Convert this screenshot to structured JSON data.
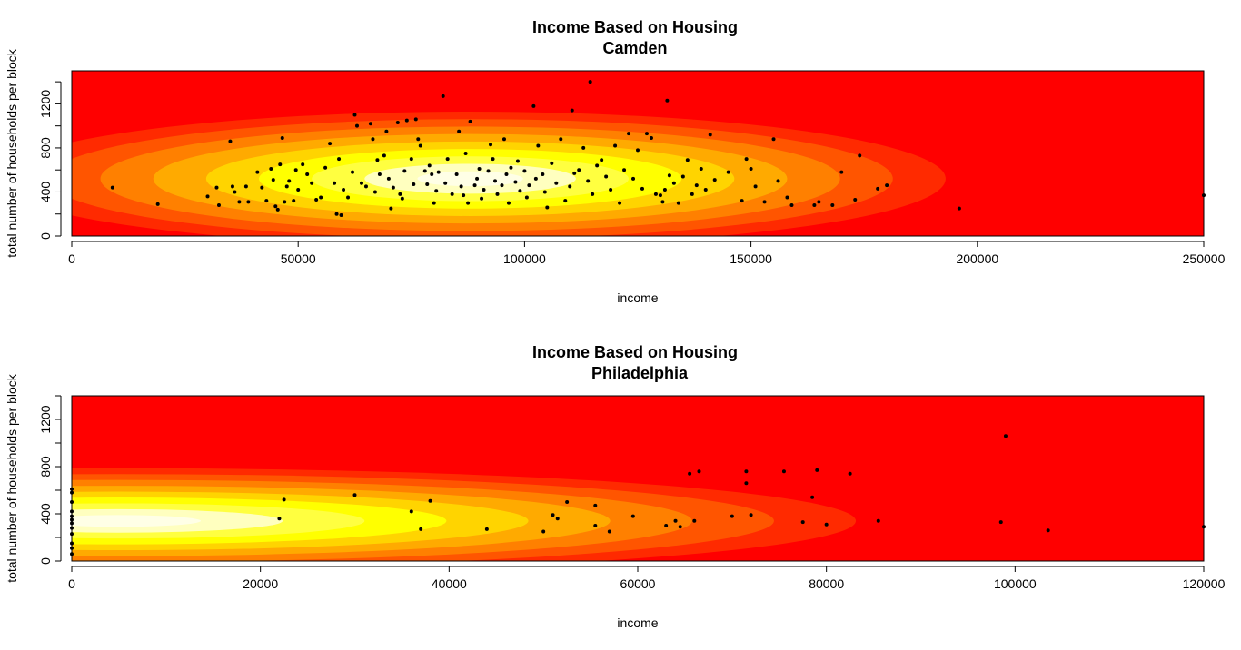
{
  "colors": {
    "background": "#ffffff",
    "palette_heat_low_to_high": [
      "#ff0000",
      "#ff2a00",
      "#ff5500",
      "#ff8000",
      "#ffaa00",
      "#ffd400",
      "#ffff00",
      "#ffff40",
      "#ffffbf",
      "#ffffe6"
    ]
  },
  "chart_data": [
    {
      "type": "scatter",
      "background": "filled density contour (heat colors)",
      "title": "Income Based on Housing",
      "subtitle": "Camden",
      "xlabel": "income",
      "ylabel": "total number of households per block",
      "xlim": [
        0,
        250000
      ],
      "ylim": [
        0,
        1500
      ],
      "xticks": [
        "0",
        "50000",
        "100000",
        "150000",
        "200000",
        "250000"
      ],
      "yticks": [
        "0",
        "400",
        "800",
        "1200"
      ],
      "grid": false,
      "density_center": [
        88000,
        520
      ],
      "points": [
        [
          9000,
          440
        ],
        [
          19000,
          290
        ],
        [
          30000,
          360
        ],
        [
          32000,
          440
        ],
        [
          32500,
          280
        ],
        [
          35000,
          860
        ],
        [
          35500,
          450
        ],
        [
          36000,
          400
        ],
        [
          37000,
          310
        ],
        [
          38500,
          450
        ],
        [
          39000,
          310
        ],
        [
          41000,
          580
        ],
        [
          42000,
          440
        ],
        [
          43000,
          320
        ],
        [
          44000,
          610
        ],
        [
          44500,
          510
        ],
        [
          45000,
          270
        ],
        [
          45500,
          240
        ],
        [
          46000,
          650
        ],
        [
          46500,
          890
        ],
        [
          47000,
          310
        ],
        [
          47500,
          450
        ],
        [
          48000,
          500
        ],
        [
          49000,
          320
        ],
        [
          49500,
          600
        ],
        [
          50000,
          420
        ],
        [
          51000,
          650
        ],
        [
          52000,
          560
        ],
        [
          53000,
          480
        ],
        [
          54000,
          330
        ],
        [
          55000,
          350
        ],
        [
          56000,
          620
        ],
        [
          57000,
          840
        ],
        [
          58000,
          480
        ],
        [
          58500,
          200
        ],
        [
          59000,
          700
        ],
        [
          59500,
          190
        ],
        [
          60000,
          420
        ],
        [
          61000,
          350
        ],
        [
          62000,
          580
        ],
        [
          62500,
          1100
        ],
        [
          63000,
          1000
        ],
        [
          64000,
          480
        ],
        [
          65000,
          450
        ],
        [
          66000,
          1020
        ],
        [
          66500,
          880
        ],
        [
          67000,
          400
        ],
        [
          67500,
          690
        ],
        [
          68000,
          560
        ],
        [
          69000,
          730
        ],
        [
          69500,
          950
        ],
        [
          70000,
          520
        ],
        [
          70500,
          250
        ],
        [
          71000,
          440
        ],
        [
          72000,
          1030
        ],
        [
          72500,
          380
        ],
        [
          73000,
          340
        ],
        [
          73500,
          590
        ],
        [
          74000,
          1050
        ],
        [
          75000,
          700
        ],
        [
          75500,
          470
        ],
        [
          76000,
          1060
        ],
        [
          76500,
          880
        ],
        [
          77000,
          820
        ],
        [
          78000,
          590
        ],
        [
          78500,
          470
        ],
        [
          79000,
          640
        ],
        [
          79500,
          560
        ],
        [
          80000,
          300
        ],
        [
          80500,
          410
        ],
        [
          81000,
          580
        ],
        [
          82000,
          1270
        ],
        [
          82500,
          480
        ],
        [
          83000,
          700
        ],
        [
          84000,
          380
        ],
        [
          85000,
          560
        ],
        [
          85500,
          950
        ],
        [
          86000,
          450
        ],
        [
          86500,
          370
        ],
        [
          87000,
          750
        ],
        [
          87500,
          300
        ],
        [
          88000,
          1040
        ],
        [
          89000,
          460
        ],
        [
          89500,
          520
        ],
        [
          90000,
          610
        ],
        [
          90500,
          340
        ],
        [
          91000,
          420
        ],
        [
          92000,
          590
        ],
        [
          92500,
          830
        ],
        [
          93000,
          700
        ],
        [
          93500,
          500
        ],
        [
          94000,
          380
        ],
        [
          95000,
          460
        ],
        [
          95500,
          880
        ],
        [
          96000,
          560
        ],
        [
          96500,
          300
        ],
        [
          97000,
          620
        ],
        [
          98000,
          490
        ],
        [
          98500,
          680
        ],
        [
          99000,
          410
        ],
        [
          100000,
          590
        ],
        [
          100500,
          350
        ],
        [
          101000,
          460
        ],
        [
          102000,
          1180
        ],
        [
          102500,
          520
        ],
        [
          103000,
          820
        ],
        [
          104000,
          560
        ],
        [
          104500,
          400
        ],
        [
          105000,
          260
        ],
        [
          106000,
          660
        ],
        [
          107000,
          480
        ],
        [
          108000,
          880
        ],
        [
          109000,
          320
        ],
        [
          110000,
          450
        ],
        [
          110500,
          1140
        ],
        [
          111000,
          570
        ],
        [
          112000,
          600
        ],
        [
          113000,
          800
        ],
        [
          114000,
          500
        ],
        [
          114500,
          1400
        ],
        [
          115000,
          380
        ],
        [
          116000,
          640
        ],
        [
          117000,
          690
        ],
        [
          118000,
          540
        ],
        [
          119000,
          420
        ],
        [
          120000,
          820
        ],
        [
          121000,
          300
        ],
        [
          122000,
          600
        ],
        [
          123000,
          930
        ],
        [
          124000,
          520
        ],
        [
          125000,
          780
        ],
        [
          126000,
          430
        ],
        [
          127000,
          930
        ],
        [
          128000,
          890
        ],
        [
          129000,
          380
        ],
        [
          130000,
          370
        ],
        [
          130500,
          310
        ],
        [
          131000,
          420
        ],
        [
          131500,
          1230
        ],
        [
          132000,
          550
        ],
        [
          133000,
          480
        ],
        [
          134000,
          300
        ],
        [
          135000,
          540
        ],
        [
          136000,
          690
        ],
        [
          137000,
          380
        ],
        [
          138000,
          460
        ],
        [
          139000,
          610
        ],
        [
          140000,
          420
        ],
        [
          141000,
          920
        ],
        [
          142000,
          510
        ],
        [
          145000,
          580
        ],
        [
          148000,
          320
        ],
        [
          149000,
          700
        ],
        [
          150000,
          610
        ],
        [
          151000,
          450
        ],
        [
          153000,
          310
        ],
        [
          155000,
          880
        ],
        [
          156000,
          500
        ],
        [
          158000,
          350
        ],
        [
          159000,
          280
        ],
        [
          164000,
          280
        ],
        [
          165000,
          310
        ],
        [
          168000,
          280
        ],
        [
          170000,
          580
        ],
        [
          173000,
          330
        ],
        [
          174000,
          730
        ],
        [
          178000,
          430
        ],
        [
          180000,
          460
        ],
        [
          196000,
          250
        ],
        [
          250000,
          370
        ]
      ]
    },
    {
      "type": "scatter",
      "background": "filled density contour (heat colors)",
      "title": "Income Based on Housing",
      "subtitle": "Philadelphia",
      "xlabel": "income",
      "ylabel": "total number of households per block",
      "xlim": [
        0,
        120000
      ],
      "ylim": [
        0,
        1400
      ],
      "xticks": [
        "0",
        "20000",
        "40000",
        "60000",
        "80000",
        "100000",
        "120000"
      ],
      "yticks": [
        "0",
        "400",
        "800",
        "1200"
      ],
      "grid": false,
      "density_center": [
        5000,
        340
      ],
      "points": [
        [
          0,
          60
        ],
        [
          0,
          110
        ],
        [
          0,
          150
        ],
        [
          0,
          230
        ],
        [
          0,
          280
        ],
        [
          0,
          320
        ],
        [
          0,
          350
        ],
        [
          0,
          380
        ],
        [
          0,
          420
        ],
        [
          0,
          500
        ],
        [
          0,
          580
        ],
        [
          0,
          610
        ],
        [
          22000,
          360
        ],
        [
          22500,
          520
        ],
        [
          30000,
          560
        ],
        [
          36000,
          420
        ],
        [
          37000,
          270
        ],
        [
          38000,
          510
        ],
        [
          44000,
          270
        ],
        [
          50000,
          250
        ],
        [
          51000,
          390
        ],
        [
          51500,
          360
        ],
        [
          52500,
          500
        ],
        [
          55500,
          470
        ],
        [
          55500,
          300
        ],
        [
          57000,
          250
        ],
        [
          59500,
          380
        ],
        [
          63000,
          300
        ],
        [
          64000,
          340
        ],
        [
          64500,
          290
        ],
        [
          65500,
          740
        ],
        [
          66000,
          340
        ],
        [
          66500,
          760
        ],
        [
          70000,
          380
        ],
        [
          71500,
          760
        ],
        [
          71500,
          660
        ],
        [
          72000,
          390
        ],
        [
          75500,
          760
        ],
        [
          77500,
          330
        ],
        [
          78500,
          540
        ],
        [
          79000,
          770
        ],
        [
          80000,
          310
        ],
        [
          82500,
          740
        ],
        [
          85500,
          340
        ],
        [
          98500,
          330
        ],
        [
          99000,
          1060
        ],
        [
          103500,
          260
        ],
        [
          120000,
          290
        ]
      ]
    }
  ]
}
